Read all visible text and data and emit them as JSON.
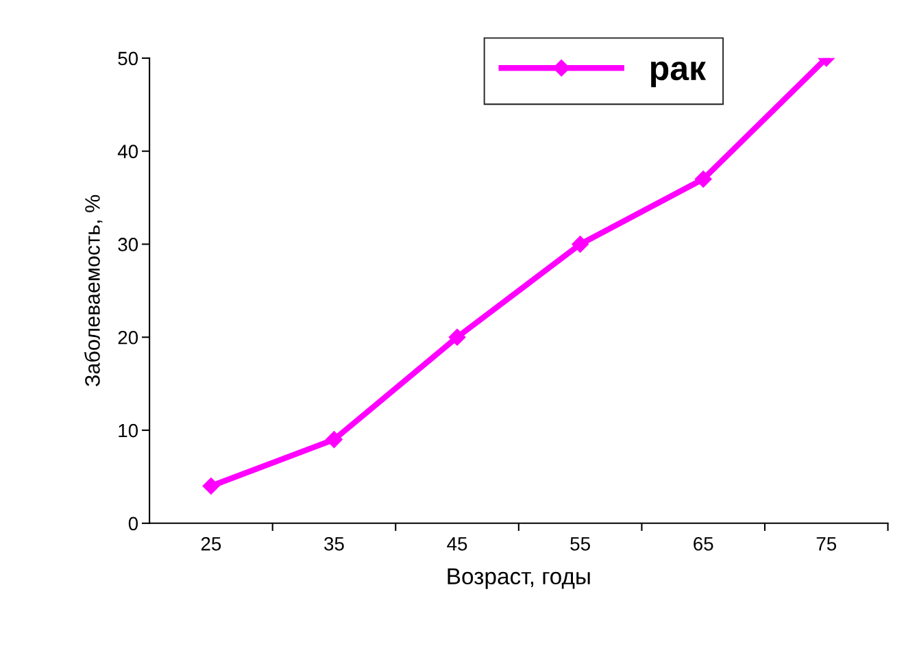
{
  "chart_data": {
    "type": "line",
    "xlabel": "Возраст, годы",
    "ylabel": "Заболеваемость, %",
    "categories": [
      "25",
      "35",
      "45",
      "55",
      "65",
      "75"
    ],
    "series": [
      {
        "name": "рак",
        "color": "#ff00ff",
        "values": [
          4,
          9,
          20,
          30,
          37,
          50
        ]
      }
    ],
    "ylim": [
      0,
      50
    ],
    "yticks": [
      0,
      10,
      20,
      30,
      40,
      50
    ],
    "grid": false,
    "legend": "top right",
    "marker": "diamond",
    "line_style": "solid"
  }
}
